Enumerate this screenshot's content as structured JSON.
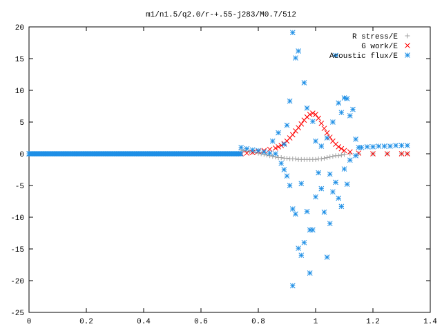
{
  "chart_data": {
    "type": "scatter",
    "title": "m1/n1.5/q2.0/r-+.55-j283/M0.7/512",
    "xlabel": "",
    "ylabel": "",
    "xlim": [
      0,
      1.4
    ],
    "ylim": [
      -25,
      20
    ],
    "xticks": [
      "0",
      "0.2",
      "0.4",
      "0.6",
      "0.8",
      "1",
      "1.2",
      "1.4"
    ],
    "yticks": [
      "20",
      "15",
      "10",
      "5",
      "0",
      "-5",
      "-10",
      "-15",
      "-20",
      "-25"
    ],
    "grid": false,
    "legend_position": "top-right",
    "series": [
      {
        "name": "R stress/E",
        "marker": "plus",
        "color": "#a0a0a0",
        "points": [
          [
            0.74,
            0.6
          ],
          [
            0.75,
            0.5
          ],
          [
            0.76,
            0.4
          ],
          [
            0.77,
            0.3
          ],
          [
            0.78,
            0.3
          ],
          [
            0.79,
            0.2
          ],
          [
            0.8,
            0.1
          ],
          [
            0.81,
            0.0
          ],
          [
            0.82,
            -0.1
          ],
          [
            0.83,
            -0.2
          ],
          [
            0.84,
            -0.3
          ],
          [
            0.85,
            -0.4
          ],
          [
            0.86,
            -0.5
          ],
          [
            0.87,
            -0.6
          ],
          [
            0.88,
            -0.6
          ],
          [
            0.89,
            -0.7
          ],
          [
            0.9,
            -0.7
          ],
          [
            0.91,
            -0.8
          ],
          [
            0.92,
            -0.8
          ],
          [
            0.93,
            -0.8
          ],
          [
            0.94,
            -0.9
          ],
          [
            0.95,
            -0.9
          ],
          [
            0.96,
            -0.9
          ],
          [
            0.97,
            -0.9
          ],
          [
            0.98,
            -0.9
          ],
          [
            0.99,
            -0.9
          ],
          [
            1.0,
            -0.9
          ],
          [
            1.01,
            -0.8
          ],
          [
            1.02,
            -0.8
          ],
          [
            1.03,
            -0.7
          ],
          [
            1.04,
            -0.6
          ],
          [
            1.05,
            -0.5
          ],
          [
            1.06,
            -0.4
          ],
          [
            1.07,
            -0.3
          ],
          [
            1.08,
            -0.3
          ],
          [
            1.09,
            -0.2
          ],
          [
            1.1,
            -0.1
          ],
          [
            1.12,
            0.0
          ],
          [
            1.15,
            0.0
          ],
          [
            1.2,
            0.0
          ],
          [
            1.25,
            0.0
          ],
          [
            1.3,
            0.0
          ],
          [
            1.32,
            0.0
          ]
        ]
      },
      {
        "name": "G work/E",
        "marker": "cross",
        "color": "#ff0000",
        "points": [
          [
            0.74,
            0.0
          ],
          [
            0.76,
            0.1
          ],
          [
            0.78,
            0.2
          ],
          [
            0.8,
            0.4
          ],
          [
            0.82,
            0.5
          ],
          [
            0.84,
            0.7
          ],
          [
            0.86,
            0.9
          ],
          [
            0.87,
            1.1
          ],
          [
            0.88,
            1.3
          ],
          [
            0.89,
            1.6
          ],
          [
            0.9,
            2.0
          ],
          [
            0.91,
            2.5
          ],
          [
            0.92,
            3.0
          ],
          [
            0.93,
            3.6
          ],
          [
            0.94,
            4.1
          ],
          [
            0.95,
            4.7
          ],
          [
            0.96,
            5.3
          ],
          [
            0.97,
            5.8
          ],
          [
            0.98,
            6.2
          ],
          [
            0.99,
            6.4
          ],
          [
            1.0,
            6.2
          ],
          [
            1.01,
            5.6
          ],
          [
            1.02,
            4.8
          ],
          [
            1.03,
            4.0
          ],
          [
            1.04,
            3.3
          ],
          [
            1.05,
            2.6
          ],
          [
            1.06,
            2.0
          ],
          [
            1.07,
            1.5
          ],
          [
            1.08,
            1.1
          ],
          [
            1.09,
            0.8
          ],
          [
            1.1,
            0.5
          ],
          [
            1.12,
            0.3
          ],
          [
            1.15,
            0.1
          ],
          [
            1.2,
            0.0
          ],
          [
            1.25,
            0.0
          ],
          [
            1.3,
            0.0
          ],
          [
            1.32,
            0.0
          ]
        ]
      },
      {
        "name": "Acoustic flux/E",
        "marker": "star",
        "color": "#1e8fe6",
        "baseline_x": [
          0.0,
          0.74
        ],
        "baseline_y": 0.0,
        "points": [
          [
            0.74,
            1.0
          ],
          [
            0.76,
            0.8
          ],
          [
            0.78,
            0.6
          ],
          [
            0.8,
            0.5
          ],
          [
            0.82,
            0.3
          ],
          [
            0.84,
            0.1
          ],
          [
            0.86,
            0.0
          ],
          [
            0.88,
            -1.5
          ],
          [
            0.89,
            -2.5
          ],
          [
            0.9,
            -3.5
          ],
          [
            0.91,
            -5.0
          ],
          [
            0.92,
            -8.7
          ],
          [
            0.93,
            -9.5
          ],
          [
            0.94,
            -14.9
          ],
          [
            0.95,
            -16.0
          ],
          [
            0.96,
            -14.0
          ],
          [
            0.97,
            -9.1
          ],
          [
            0.98,
            -18.8
          ],
          [
            0.99,
            -12.0
          ],
          [
            1.0,
            -6.8
          ],
          [
            1.01,
            -3.0
          ],
          [
            1.03,
            -9.2
          ],
          [
            1.04,
            -16.3
          ],
          [
            1.05,
            -11.0
          ],
          [
            1.06,
            -6.0
          ],
          [
            1.07,
            -4.5
          ],
          [
            1.08,
            -7.0
          ],
          [
            1.09,
            -8.3
          ],
          [
            1.1,
            -2.4
          ],
          [
            1.12,
            -1.0
          ],
          [
            1.14,
            -0.3
          ],
          [
            0.85,
            2.0
          ],
          [
            0.87,
            3.3
          ],
          [
            0.89,
            1.5
          ],
          [
            0.9,
            4.5
          ],
          [
            0.91,
            8.3
          ],
          [
            0.92,
            19.1
          ],
          [
            0.93,
            15.1
          ],
          [
            0.94,
            16.2
          ],
          [
            0.96,
            11.2
          ],
          [
            0.97,
            7.2
          ],
          [
            0.99,
            5.1
          ],
          [
            1.0,
            2.0
          ],
          [
            1.02,
            1.2
          ],
          [
            1.04,
            2.5
          ],
          [
            1.06,
            5.0
          ],
          [
            1.07,
            15.5
          ],
          [
            1.08,
            8.0
          ],
          [
            1.09,
            6.5
          ],
          [
            1.1,
            8.8
          ],
          [
            1.11,
            8.7
          ],
          [
            1.12,
            6.0
          ],
          [
            1.13,
            7.0
          ],
          [
            1.14,
            2.3
          ],
          [
            1.15,
            1.0
          ],
          [
            1.16,
            1.0
          ],
          [
            1.18,
            1.1
          ],
          [
            1.2,
            1.1
          ],
          [
            1.22,
            1.2
          ],
          [
            1.24,
            1.2
          ],
          [
            1.26,
            1.2
          ],
          [
            1.28,
            1.3
          ],
          [
            1.3,
            1.3
          ],
          [
            1.32,
            1.3
          ],
          [
            0.92,
            -20.8
          ],
          [
            0.95,
            -4.7
          ],
          [
            0.98,
            -12.0
          ],
          [
            1.02,
            -5.5
          ],
          [
            1.05,
            -3.2
          ],
          [
            1.11,
            -4.8
          ]
        ]
      }
    ]
  }
}
